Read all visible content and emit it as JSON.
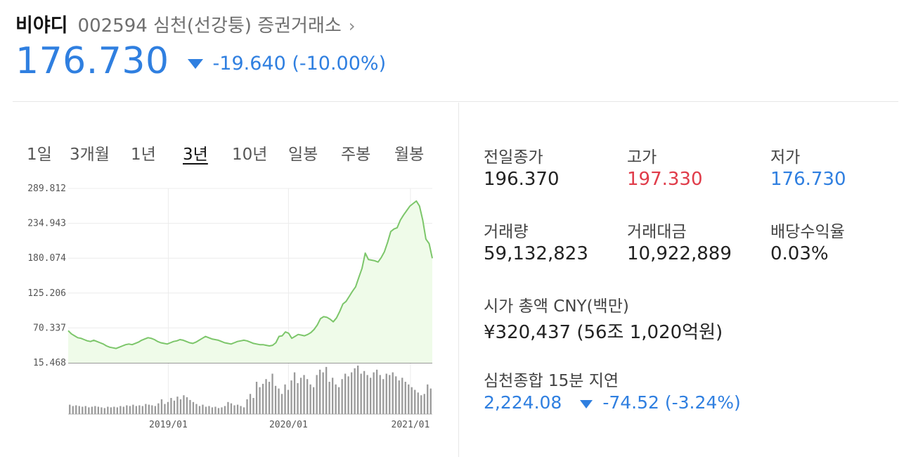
{
  "stock": {
    "name": "비야디",
    "meta": "002594 심천(선강퉁) 증권거래소",
    "chevron": "›",
    "price": "176.730",
    "change": "-19.640 (-10.00%)"
  },
  "periods": [
    "1일",
    "3개월",
    "1년",
    "3년",
    "10년",
    "일봉",
    "주봉",
    "월봉"
  ],
  "active_period": "3년",
  "stats": {
    "prev_close_label": "전일종가",
    "prev_close": "196.370",
    "high_label": "고가",
    "high": "197.330",
    "low_label": "저가",
    "low": "176.730",
    "volume_label": "거래량",
    "volume": "59,132,823",
    "turnover_label": "거래대금",
    "turnover": "10,922,889",
    "dividend_label": "배당수익율",
    "dividend": "0.03%",
    "mcap_label": "시가 총액 CNY(백만)",
    "mcap": "¥320,437 (56조 1,020억원)",
    "index_label": "심천종합 15분 지연",
    "index_value": "2,224.08",
    "index_change": "-74.52 (-3.24%)"
  },
  "colors": {
    "up": "#e03c4a",
    "down": "#2f7fe0",
    "line": "#7cc66a",
    "fill": "#effbe9",
    "volume": "#9a9a9a"
  },
  "chart_data": {
    "type": "area",
    "y_ticks": [
      "289.812",
      "234.943",
      "180.074",
      "125.206",
      "70.337",
      "15.468"
    ],
    "ylim": [
      15.468,
      289.812
    ],
    "x_ticks": [
      "2019/01",
      "2020/01",
      "2021/01"
    ],
    "x_start": "2018/04",
    "x_end": "2021/03",
    "series": [
      {
        "values": [
          66,
          61,
          58,
          55,
          54,
          52,
          50,
          49,
          51,
          49,
          47,
          45,
          42,
          40,
          39,
          38,
          40,
          42,
          44,
          45,
          44,
          46,
          48,
          51,
          53,
          55,
          54,
          52,
          49,
          47,
          46,
          45,
          47,
          49,
          50,
          52,
          51,
          49,
          47,
          46,
          48,
          51,
          54,
          57,
          55,
          53,
          52,
          51,
          49,
          47,
          46,
          45,
          47,
          49,
          50,
          51,
          50,
          48,
          46,
          45,
          44,
          44,
          43,
          42,
          43,
          47,
          57,
          58,
          64,
          62,
          54,
          57,
          60,
          59,
          58,
          60,
          63,
          68,
          75,
          85,
          88,
          87,
          84,
          80,
          86,
          96,
          108,
          112,
          120,
          128,
          135,
          150,
          164,
          188,
          178,
          177,
          176,
          174,
          181,
          190,
          205,
          222,
          226,
          228,
          240,
          248,
          255,
          262,
          266,
          270,
          262,
          240,
          210,
          203,
          180
        ]
      }
    ],
    "volume": [
      14,
      12,
      13,
      12,
      11,
      12,
      10,
      11,
      12,
      11,
      10,
      9,
      11,
      10,
      11,
      10,
      12,
      11,
      13,
      12,
      14,
      12,
      13,
      12,
      15,
      14,
      13,
      12,
      16,
      22,
      15,
      18,
      24,
      20,
      26,
      22,
      28,
      25,
      21,
      18,
      15,
      12,
      14,
      11,
      12,
      10,
      11,
      9,
      10,
      12,
      18,
      16,
      13,
      14,
      12,
      10,
      22,
      30,
      24,
      48,
      40,
      45,
      52,
      48,
      60,
      42,
      38,
      30,
      44,
      36,
      50,
      62,
      46,
      54,
      58,
      52,
      44,
      40,
      58,
      66,
      62,
      70,
      48,
      54,
      44,
      40,
      52,
      60,
      56,
      62,
      68,
      72,
      60,
      64,
      58,
      54,
      62,
      66,
      58,
      52,
      60,
      58,
      62,
      56,
      50,
      54,
      48,
      44,
      40,
      36,
      32,
      28,
      30,
      44,
      38
    ]
  }
}
